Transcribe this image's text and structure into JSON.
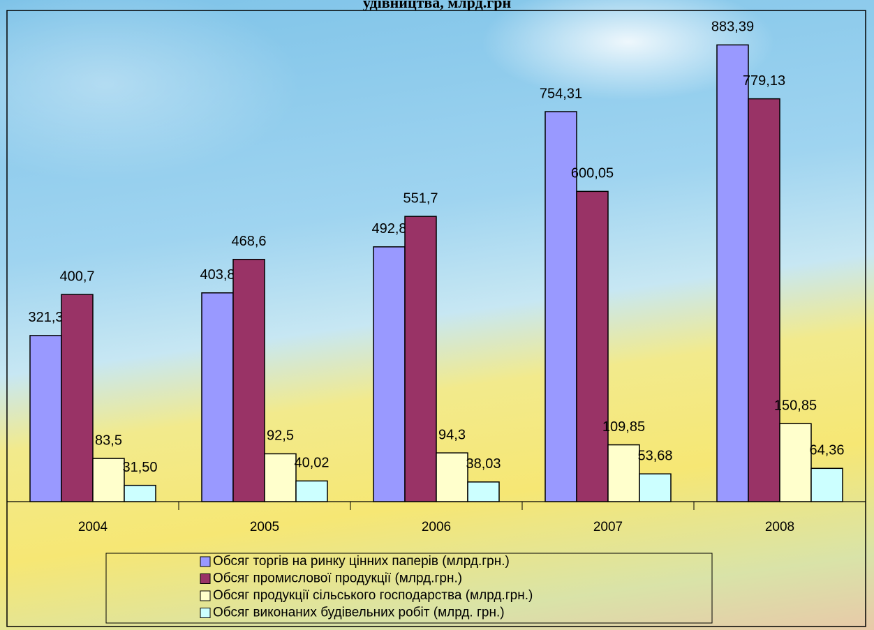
{
  "chart_data": {
    "type": "bar",
    "title": "удівництва, млрд.грн",
    "categories": [
      "2004",
      "2005",
      "2006",
      "2007",
      "2008"
    ],
    "series": [
      {
        "name": "Обсяг торгів на ринку цінних паперів (млрд.грн.)",
        "color": "#9999ff",
        "values": [
          321.3,
          403.8,
          492.8,
          754.31,
          883.39
        ],
        "value_labels": [
          "321,3",
          "403,8",
          "492,8",
          "754,31",
          "883,39"
        ]
      },
      {
        "name": "Обсяг промислової продукції (млрд.грн.)",
        "color": "#993366",
        "values": [
          400.7,
          468.6,
          551.7,
          600.05,
          779.13
        ],
        "value_labels": [
          "400,7",
          "468,6",
          "551,7",
          "600,05",
          "779,13"
        ]
      },
      {
        "name": "Обсяг продукції сільського господарства (млрд.грн.)",
        "color": "#ffffcc",
        "values": [
          83.5,
          92.5,
          94.3,
          109.85,
          150.85
        ],
        "value_labels": [
          "83,5",
          "92,5",
          "94,3",
          "109,85",
          "150,85"
        ]
      },
      {
        "name": "Обсяг виконаних будівельних робіт (млрд. грн.)",
        "color": "#ccffff",
        "values": [
          31.5,
          40.02,
          38.03,
          53.68,
          64.36
        ],
        "value_labels": [
          "31,50",
          "40,02",
          "38,03",
          "53,68",
          "64,36"
        ]
      }
    ],
    "ylim": [
      0,
      950
    ],
    "legend": "bottom"
  }
}
